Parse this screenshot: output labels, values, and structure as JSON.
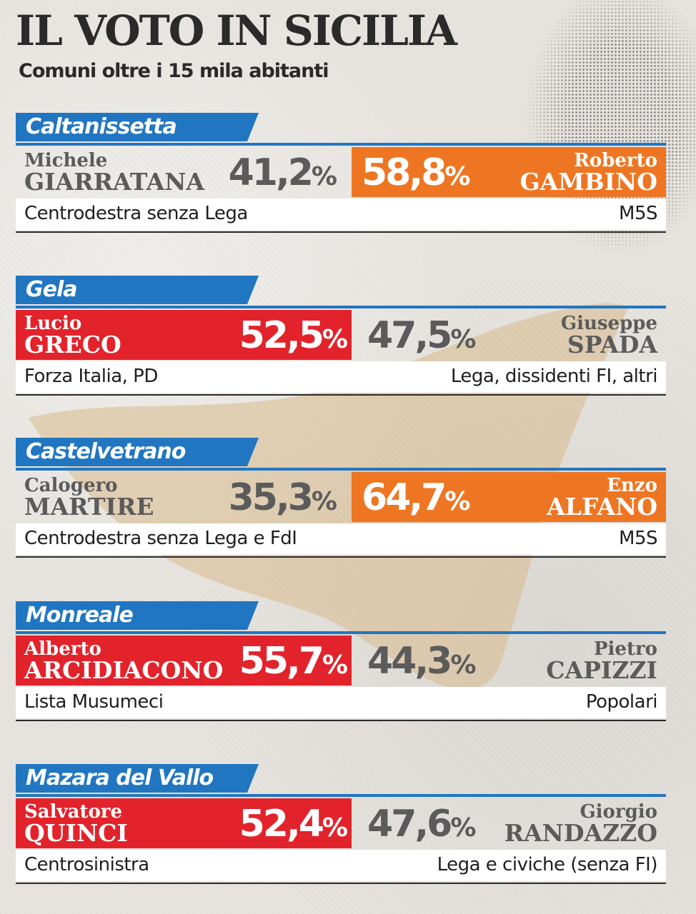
{
  "title": "IL VOTO IN SICILIA",
  "subtitle": "Comuni oltre i 15 mila abitanti",
  "colors": {
    "accent_blue": "#2176c1",
    "winner_centrodestra": "#e2232b",
    "winner_m5s": "#ee7623",
    "loser_text": "#5b5b5b"
  },
  "races": [
    {
      "city": "Caltanissetta",
      "left": {
        "first": "Michele",
        "last": "GIARRATANA",
        "pct": "41,2",
        "party": "Centrodestra senza Lega"
      },
      "right": {
        "first": "Roberto",
        "last": "GAMBINO",
        "pct": "58,8",
        "party": "M5S"
      },
      "winner": "right"
    },
    {
      "city": "Gela",
      "left": {
        "first": "Lucio",
        "last": "GRECO",
        "pct": "52,5",
        "party": "Forza Italia, PD"
      },
      "right": {
        "first": "Giuseppe",
        "last": "SPADA",
        "pct": "47,5",
        "party": "Lega, dissidenti FI, altri"
      },
      "winner": "left"
    },
    {
      "city": "Castelvetrano",
      "left": {
        "first": "Calogero",
        "last": "MARTIRE",
        "pct": "35,3",
        "party": "Centrodestra senza Lega e FdI"
      },
      "right": {
        "first": "Enzo",
        "last": "ALFANO",
        "pct": "64,7",
        "party": "M5S"
      },
      "winner": "right"
    },
    {
      "city": "Monreale",
      "left": {
        "first": "Alberto",
        "last": "ARCIDIACONO",
        "pct": "55,7",
        "party": "Lista Musumeci"
      },
      "right": {
        "first": "Pietro",
        "last": "CAPIZZI",
        "pct": "44,3",
        "party": "Popolari"
      },
      "winner": "left"
    },
    {
      "city": "Mazara del Vallo",
      "left": {
        "first": "Salvatore",
        "last": "QUINCI",
        "pct": "52,4",
        "party": "Centrosinistra"
      },
      "right": {
        "first": "Giorgio",
        "last": "RANDAZZO",
        "pct": "47,6",
        "party": "Lega e civiche (senza FI)"
      },
      "winner": "left"
    }
  ]
}
